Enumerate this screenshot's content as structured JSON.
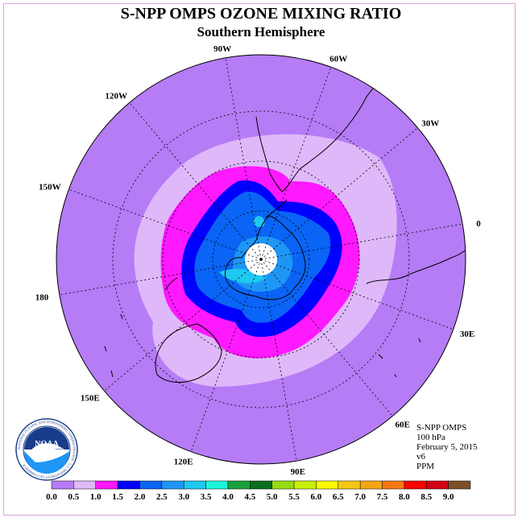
{
  "title": "S-NPP OMPS OZONE MIXING RATIO",
  "subtitle": "Southern Hemisphere",
  "info": {
    "instrument": "S-NPP OMPS",
    "level": "100 hPa",
    "date": "February 5, 2015",
    "version": "v6",
    "units": "PPM"
  },
  "longitude_labels": [
    "90W",
    "60W",
    "30W",
    "0",
    "30E",
    "60E",
    "90E",
    "120E",
    "150E",
    "180",
    "150W",
    "120W"
  ],
  "colorbar": {
    "ticks": [
      "0.0",
      "0.5",
      "1.0",
      "1.5",
      "2.0",
      "2.5",
      "3.0",
      "3.5",
      "4.0",
      "4.5",
      "5.0",
      "5.5",
      "6.0",
      "6.5",
      "7.0",
      "7.5",
      "8.0",
      "8.5",
      "9.0"
    ],
    "colors": [
      "#b57cf5",
      "#dfb8fa",
      "#ff19ff",
      "#0000ff",
      "#0a64f5",
      "#1e96f5",
      "#1ec8f0",
      "#19f5dc",
      "#19a03c",
      "#0a6e1e",
      "#96dc14",
      "#c8f00a",
      "#fafa00",
      "#f5c814",
      "#f5a514",
      "#f57814",
      "#ff0000",
      "#d20014",
      "#7d5028"
    ]
  },
  "ozone_levels": [
    {
      "range": "0.0-0.5",
      "color": "#b57cf5"
    },
    {
      "range": "0.5-1.0",
      "color": "#dfb8fa"
    },
    {
      "range": "1.0-1.5",
      "color": "#ff19ff"
    },
    {
      "range": "1.5-2.0",
      "color": "#0000ff"
    },
    {
      "range": "2.0-2.5",
      "color": "#0a64f5"
    },
    {
      "range": "2.5-3.0",
      "color": "#1e96f5"
    }
  ],
  "logo": {
    "text": "NOAA",
    "ring_text": "NATIONAL OCEANIC AND ATMOSPHERIC ADMINISTRATION · U.S. DEPARTMENT OF COMMERCE"
  }
}
